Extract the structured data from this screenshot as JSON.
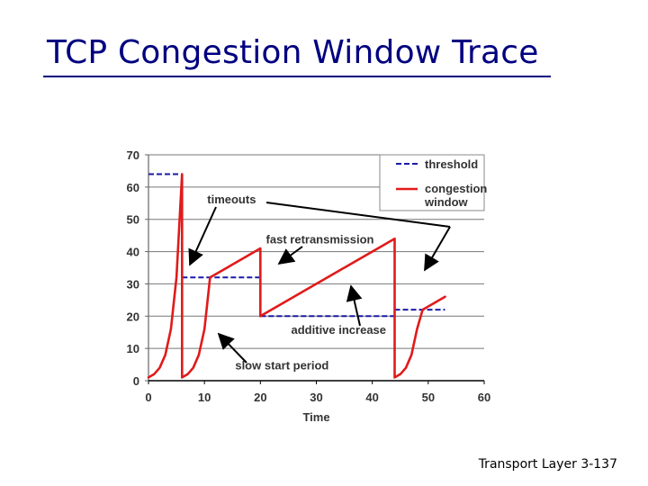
{
  "slide": {
    "title": "TCP Congestion Window Trace",
    "footer": "Transport Layer 3-137"
  },
  "chart_data": {
    "type": "line",
    "title": "",
    "xlabel": "Time",
    "ylabel": "",
    "xlim": [
      0,
      60
    ],
    "ylim": [
      0,
      70
    ],
    "xticks": [
      0,
      10,
      20,
      30,
      40,
      50,
      60
    ],
    "yticks": [
      0,
      10,
      20,
      30,
      40,
      50,
      60,
      70
    ],
    "grid": "horizontal",
    "legend_position": "top-right",
    "colors": {
      "threshold": "#1a1aa6",
      "congestion": "#e11a1a"
    },
    "series": [
      {
        "name": "threshold",
        "style": "dashed",
        "segments": [
          [
            [
              0,
              64
            ],
            [
              6,
              64
            ]
          ],
          [
            [
              6,
              32
            ],
            [
              20,
              32
            ]
          ],
          [
            [
              20,
              20
            ],
            [
              44,
              20
            ]
          ],
          [
            [
              44,
              22
            ],
            [
              53,
              22
            ]
          ]
        ]
      },
      {
        "name": "congestion window",
        "style": "solid",
        "points": [
          [
            0,
            1
          ],
          [
            1,
            2
          ],
          [
            2,
            4
          ],
          [
            3,
            8
          ],
          [
            4,
            16
          ],
          [
            5,
            32
          ],
          [
            6,
            64
          ],
          [
            6,
            1
          ],
          [
            7,
            2
          ],
          [
            8,
            4
          ],
          [
            9,
            8
          ],
          [
            10,
            16
          ],
          [
            11,
            32
          ],
          [
            20,
            41
          ],
          [
            20,
            20
          ],
          [
            44,
            44
          ],
          [
            44,
            1
          ],
          [
            45,
            2
          ],
          [
            46,
            4
          ],
          [
            47,
            8
          ],
          [
            48,
            16
          ],
          [
            49,
            22
          ],
          [
            53,
            26
          ]
        ]
      }
    ],
    "annotations": [
      {
        "text": "timeouts",
        "anchor": [
          10.5,
          55
        ],
        "arrows_to": [
          [
            6.5,
            36
          ],
          [
            44.7,
            35
          ]
        ]
      },
      {
        "text": "fast retransmission",
        "anchor": [
          21,
          42.5
        ],
        "arrows_to": [
          [
            20.8,
            37
          ]
        ]
      },
      {
        "text": "additive increase",
        "anchor": [
          25.5,
          14.5
        ],
        "arrows_to": [
          [
            31,
            30
          ]
        ]
      },
      {
        "text": "slow start period",
        "anchor": [
          15.5,
          3.5
        ],
        "arrows_to": [
          [
            11.5,
            14.5
          ]
        ]
      }
    ]
  }
}
